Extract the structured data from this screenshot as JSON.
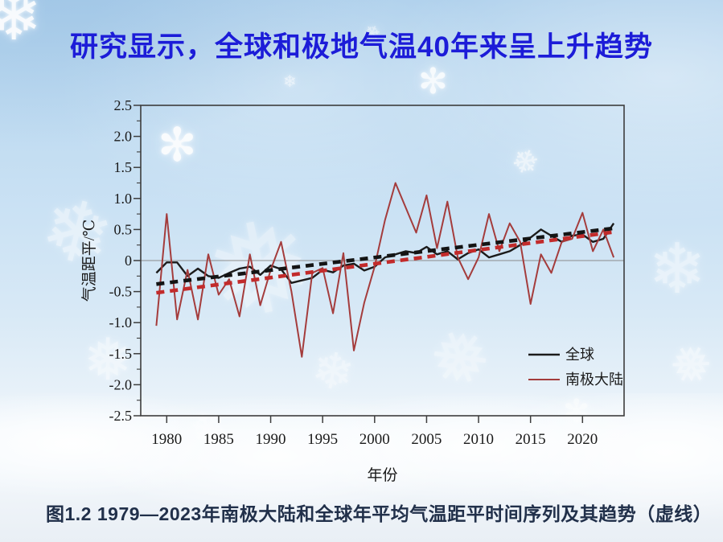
{
  "slide": {
    "title": "研究显示，全球和极地气温40年来呈上升趋势",
    "title_color": "#1c1cd8",
    "caption": "图1.2 1979—2023年南极大陆和全球年平均气温距平时间序列及其趋势（虚线）",
    "caption_color": "#21304a"
  },
  "icons": {
    "snowflake": "❄",
    "snowflake_alt": "❅",
    "sparkle": "✻"
  },
  "chart_data": {
    "type": "line",
    "title": "",
    "xlabel": "年份",
    "ylabel": "气温距平/℃",
    "xlim": [
      1977.5,
      2024
    ],
    "ylim": [
      -2.5,
      2.5
    ],
    "x_ticks": [
      1980,
      1985,
      1990,
      1995,
      2000,
      2005,
      2010,
      2015,
      2020
    ],
    "y_ticks": [
      2.5,
      2.0,
      1.5,
      1.0,
      0.5,
      0,
      -0.5,
      -1.0,
      -1.5,
      -2.0,
      -2.5
    ],
    "y_tick_labels": [
      "2.5",
      "2.0",
      "1.5",
      "1.0",
      "0.5",
      "0",
      "-0.5",
      "-1.0",
      "-1.5",
      "-2.0",
      "-2.5"
    ],
    "grid": false,
    "zero_line": true,
    "axis_color": "#3d3d3d",
    "zero_line_color": "#8c8c8c",
    "x": [
      1979,
      1980,
      1981,
      1982,
      1983,
      1984,
      1985,
      1986,
      1987,
      1988,
      1989,
      1990,
      1991,
      1992,
      1993,
      1994,
      1995,
      1996,
      1997,
      1998,
      1999,
      2000,
      2001,
      2002,
      2003,
      2004,
      2005,
      2006,
      2007,
      2008,
      2009,
      2010,
      2011,
      2012,
      2013,
      2014,
      2015,
      2016,
      2017,
      2018,
      2019,
      2020,
      2021,
      2022,
      2023
    ],
    "series": [
      {
        "name": "全球",
        "color": "#1b1b1b",
        "style": "solid",
        "width": 2.4,
        "values": [
          -0.2,
          -0.03,
          -0.03,
          -0.25,
          -0.13,
          -0.25,
          -0.28,
          -0.2,
          -0.13,
          -0.1,
          -0.23,
          -0.08,
          -0.14,
          -0.36,
          -0.32,
          -0.28,
          -0.15,
          -0.19,
          -0.08,
          -0.05,
          -0.16,
          -0.1,
          0.05,
          0.1,
          0.15,
          0.12,
          0.22,
          0.1,
          0.15,
          0.02,
          0.12,
          0.18,
          0.05,
          0.1,
          0.15,
          0.25,
          0.37,
          0.5,
          0.4,
          0.3,
          0.4,
          0.42,
          0.3,
          0.35,
          0.6
        ]
      },
      {
        "name": "南极大陆",
        "color": "#a43c3c",
        "style": "solid",
        "width": 2.0,
        "values": [
          -1.05,
          0.75,
          -0.95,
          -0.15,
          -0.95,
          0.1,
          -0.55,
          -0.3,
          -0.9,
          0.1,
          -0.72,
          -0.15,
          0.3,
          -0.5,
          -1.55,
          -0.2,
          -0.12,
          -0.85,
          0.12,
          -1.45,
          -0.68,
          -0.1,
          0.65,
          1.25,
          0.85,
          0.45,
          1.05,
          0.2,
          0.95,
          0.05,
          -0.3,
          0.05,
          0.75,
          0.15,
          0.6,
          0.3,
          -0.7,
          0.1,
          -0.2,
          0.3,
          0.35,
          0.77,
          0.15,
          0.5,
          0.05
        ]
      },
      {
        "name": "南极大陆趋势（虚线）",
        "color": "#c22b2b",
        "style": "dashed",
        "width": 4.6,
        "points": [
          [
            1979,
            -0.52
          ],
          [
            2023,
            0.46
          ]
        ]
      },
      {
        "name": "全球趋势（虚线）",
        "color": "#141414",
        "style": "dashed",
        "width": 4.6,
        "points": [
          [
            1979,
            -0.38
          ],
          [
            2023,
            0.52
          ]
        ]
      }
    ],
    "legend": {
      "position": "inside lower right",
      "entries": [
        {
          "label": "全球",
          "color": "#1b1b1b"
        },
        {
          "label": "南极大陆",
          "color": "#a43c3c"
        }
      ]
    }
  }
}
